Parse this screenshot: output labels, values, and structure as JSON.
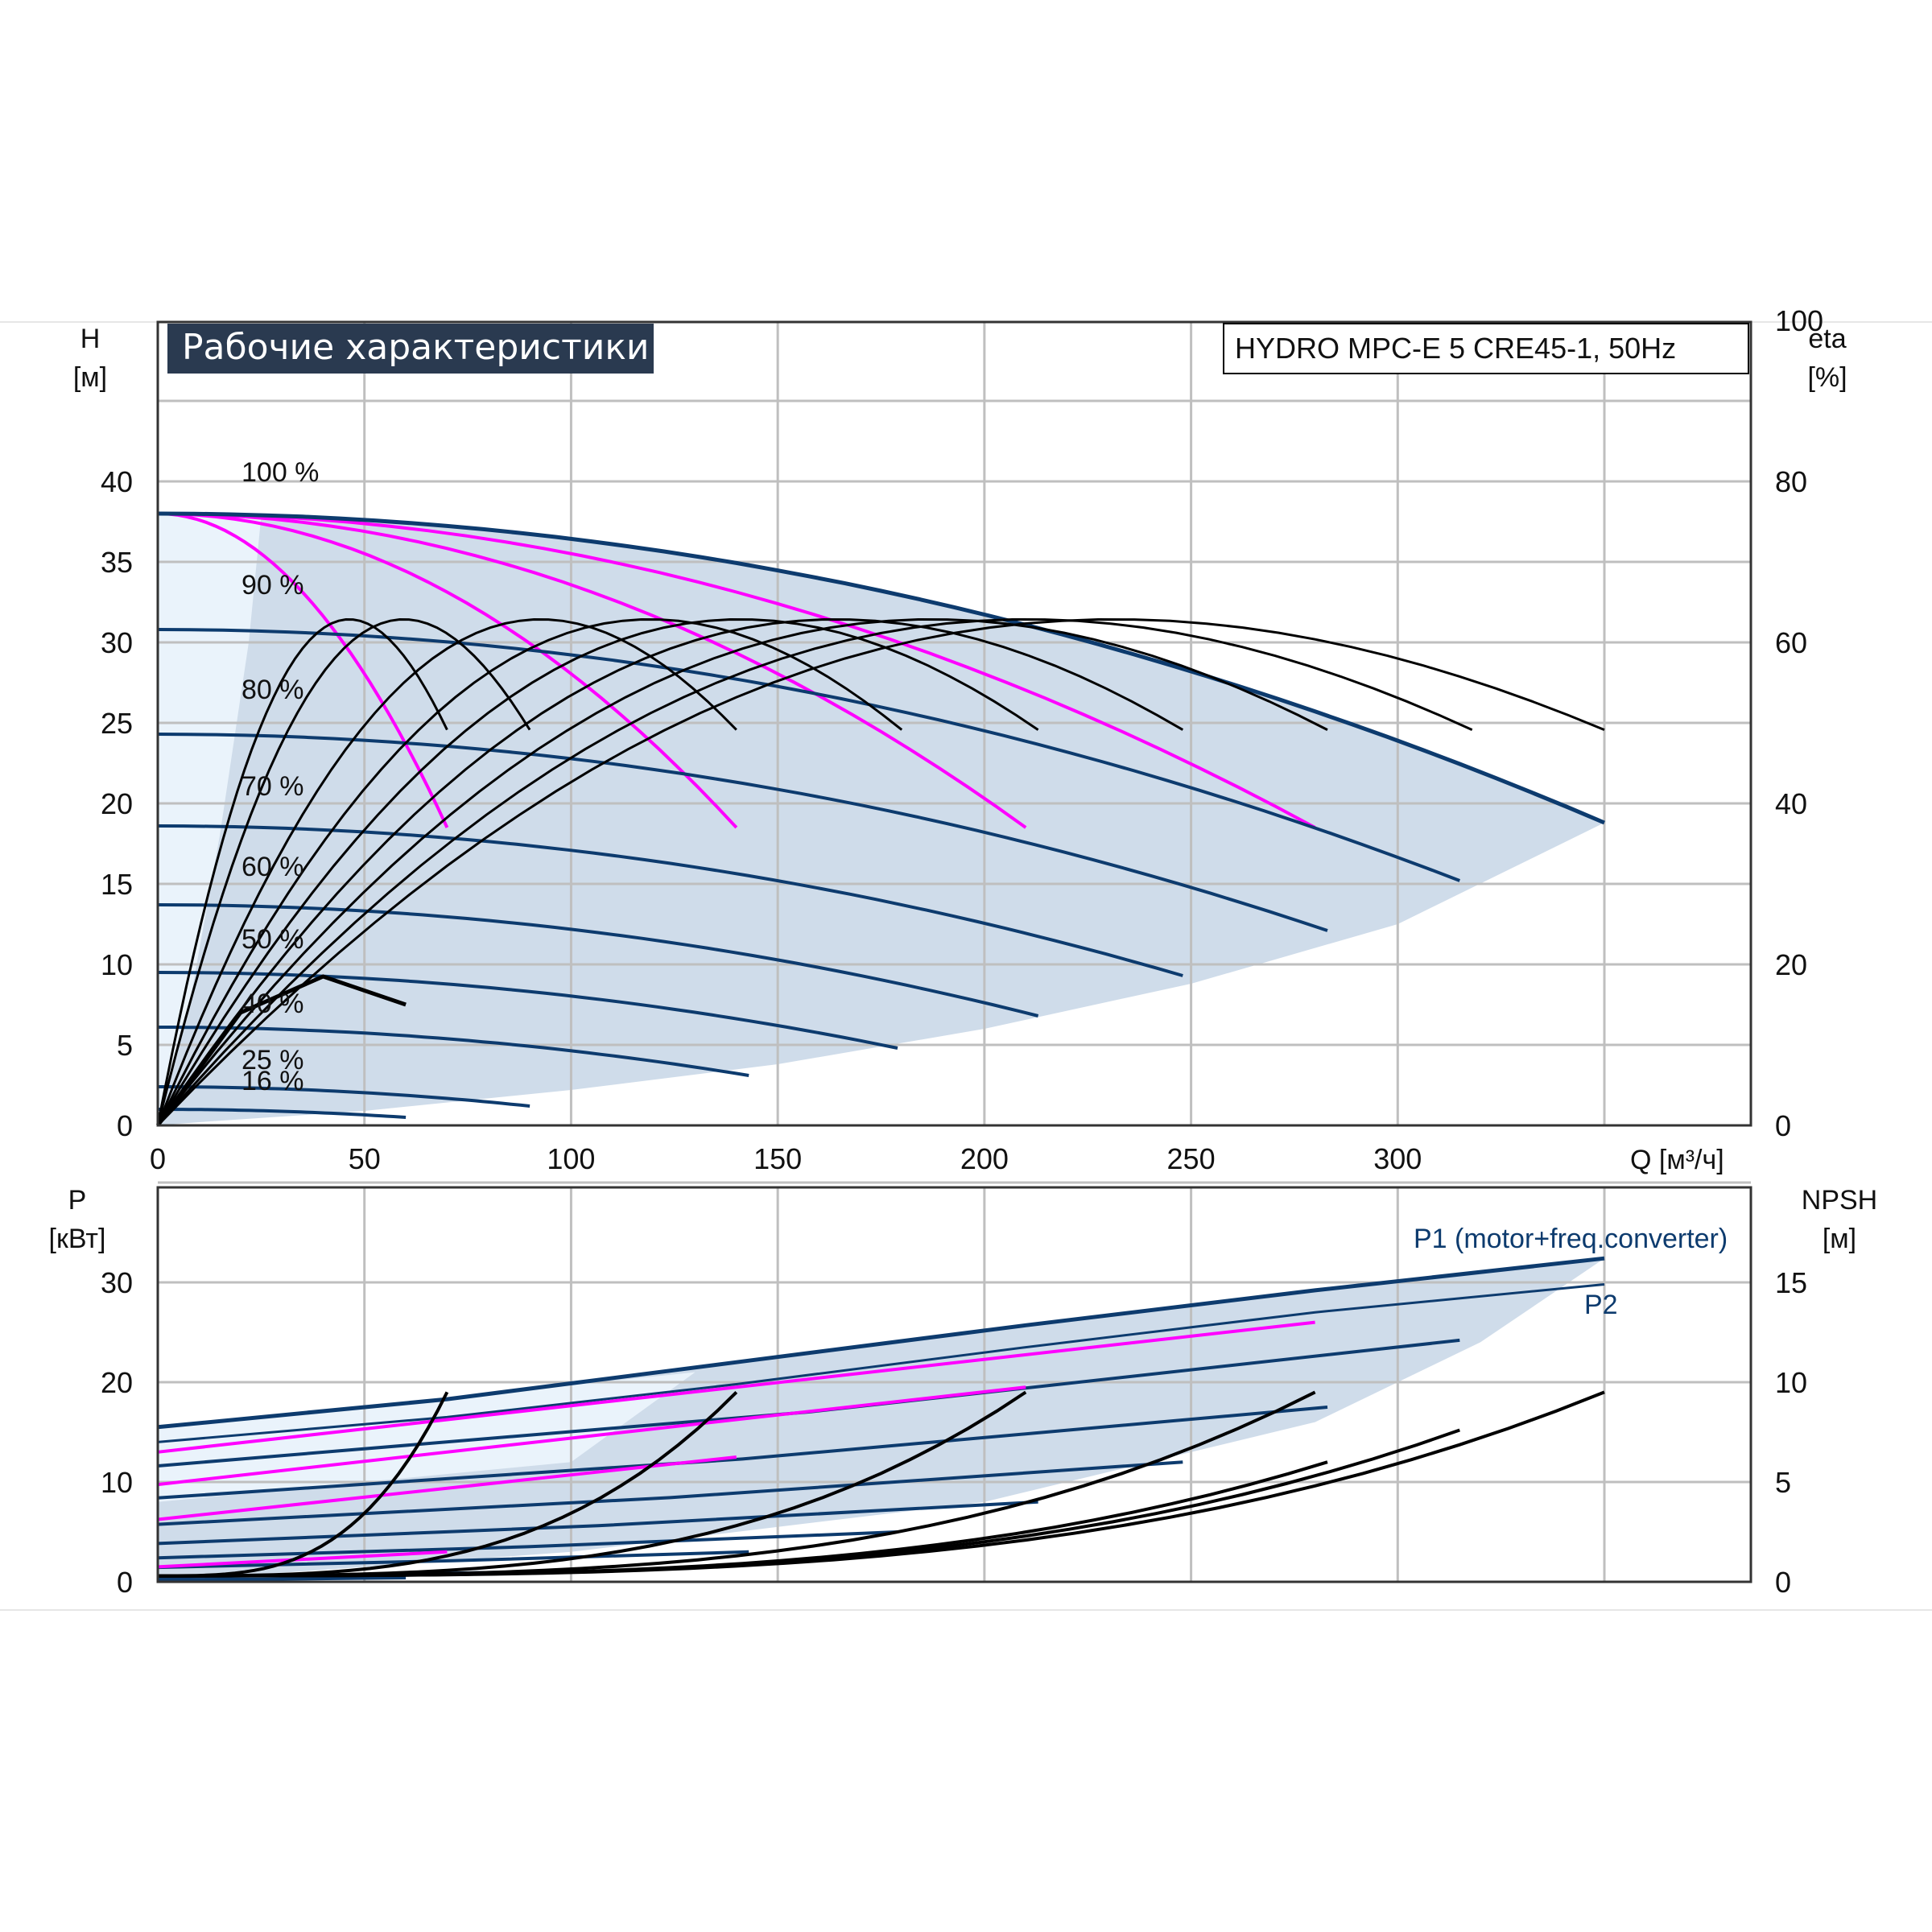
{
  "panel_title": "Рабочие характеристики",
  "model_label": "HYDRO MPC-E 5 CRE45-1, 50Hz",
  "colors": {
    "pump_curve": "#0d3b6e",
    "system_curve": "#ff00ff",
    "efficiency": "#000000",
    "envelope_fill": "#cfdcea",
    "grid": "#bfbfbf",
    "title_bg": "#2a3a50"
  },
  "top": {
    "y_symbol": "H",
    "y_unit": "[м]",
    "right_symbol": "eta",
    "right_unit": "[%]",
    "x_label": "Q [м³/ч]",
    "x_ticks": [
      "0",
      "50",
      "100",
      "150",
      "200",
      "250",
      "300"
    ],
    "y_ticks": [
      "0",
      "5",
      "10",
      "15",
      "20",
      "25",
      "30",
      "35",
      "40"
    ],
    "right_ticks": [
      "0",
      "20",
      "40",
      "60",
      "80",
      "100"
    ],
    "speed_labels": [
      "100 %",
      "90 %",
      "80 %",
      "70 %",
      "60 %",
      "50 %",
      "40 %",
      "25 %",
      "16 %"
    ]
  },
  "bottom": {
    "y_symbol": "P",
    "y_unit": "[кВт]",
    "right_symbol": "NPSH",
    "right_unit": "[м]",
    "y_ticks": [
      "0",
      "10",
      "20",
      "30"
    ],
    "right_ticks": [
      "0",
      "5",
      "10",
      "15"
    ],
    "p1_label": "P1 (motor+freq.converter)",
    "p2_label": "P2"
  },
  "chart_data": [
    {
      "type": "line",
      "xlabel": "Q [м³/ч]",
      "ylabel": "H [м]",
      "y2label": "eta [%]",
      "xlim": [
        0,
        350
      ],
      "ylim": [
        0,
        45
      ],
      "y2lim": [
        0,
        100
      ],
      "grid": true,
      "series": [
        {
          "name": "100 %",
          "x": [
            0,
            70,
            140,
            210,
            280,
            350
          ],
          "y": [
            38,
            36.8,
            33.6,
            29.2,
            24.2,
            18.8
          ]
        },
        {
          "name": "90 %",
          "x": [
            0,
            63,
            126,
            189,
            252,
            315
          ],
          "y": [
            30.8,
            29.8,
            27.2,
            23.7,
            19.6,
            15.2
          ]
        },
        {
          "name": "80 %",
          "x": [
            0,
            56,
            112,
            168,
            224,
            283
          ],
          "y": [
            24.3,
            23.5,
            21.5,
            18.7,
            15.5,
            12.1
          ]
        },
        {
          "name": "70 %",
          "x": [
            0,
            49,
            98,
            147,
            196,
            248
          ],
          "y": [
            18.6,
            18.0,
            16.5,
            14.3,
            11.9,
            9.3
          ]
        },
        {
          "name": "60 %",
          "x": [
            0,
            42,
            84,
            126,
            168,
            213
          ],
          "y": [
            13.7,
            13.2,
            12.1,
            10.5,
            8.7,
            6.8
          ]
        },
        {
          "name": "50 %",
          "x": [
            0,
            36,
            72,
            108,
            144,
            179
          ],
          "y": [
            9.5,
            9.2,
            8.4,
            7.3,
            6.1,
            4.8
          ]
        },
        {
          "name": "40 %",
          "x": [
            0,
            29,
            58,
            87,
            116,
            143
          ],
          "y": [
            6.1,
            5.9,
            5.4,
            4.7,
            3.9,
            3.1
          ]
        },
        {
          "name": "25 %",
          "x": [
            0,
            18,
            36,
            54,
            72,
            90
          ],
          "y": [
            2.4,
            2.3,
            2.1,
            1.8,
            1.5,
            1.2
          ]
        },
        {
          "name": "16 %",
          "x": [
            0,
            12,
            24,
            36,
            48,
            60
          ],
          "y": [
            1.0,
            0.97,
            0.89,
            0.77,
            0.64,
            0.5
          ]
        }
      ]
    },
    {
      "type": "line",
      "xlabel": "Q [м³/ч]",
      "ylabel": "P [кВт]",
      "y2label": "NPSH [м]",
      "xlim": [
        0,
        350
      ],
      "ylim": [
        0,
        40
      ],
      "y2lim": [
        0,
        20
      ],
      "grid": true,
      "series": [
        {
          "name": "P1 (motor+freq.converter)",
          "x": [
            0,
            70,
            140,
            210,
            280,
            350
          ],
          "y": [
            15.5,
            18.3,
            22.0,
            25.7,
            29.2,
            32.4
          ]
        },
        {
          "name": "P2",
          "x": [
            0,
            70,
            140,
            210,
            280,
            350
          ],
          "y": [
            14.0,
            16.5,
            19.8,
            23.5,
            27.0,
            29.8
          ]
        }
      ]
    }
  ]
}
